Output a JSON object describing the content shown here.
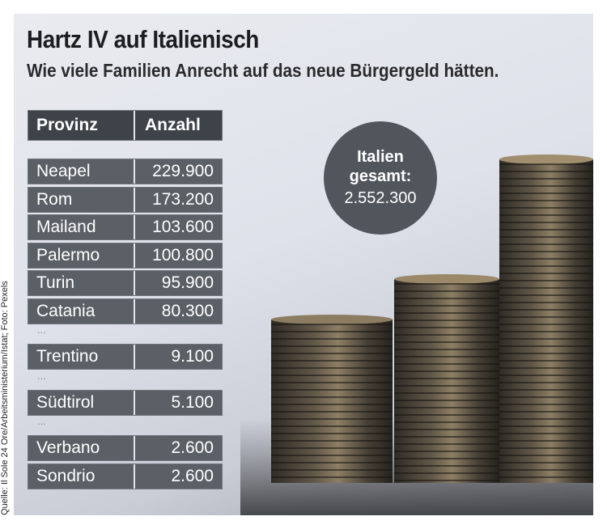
{
  "title": "Hartz IV auf Italienisch",
  "subtitle": "Wie viele Familien Anrecht auf das neue Bürgergeld hätten.",
  "total": {
    "line1": "Italien",
    "line2": "gesamt:",
    "value": "2.552.300"
  },
  "source": "Quelle: Il Sole 24 Ore/Arbeitsministerium/Istat; Foto: Pexels",
  "chart_data": {
    "type": "table",
    "columns": [
      "Provinz",
      "Anzahl"
    ],
    "rows": [
      [
        "Neapel",
        "229.900"
      ],
      [
        "Rom",
        "173.200"
      ],
      [
        "Mailand",
        "103.600"
      ],
      [
        "Palermo",
        "100.800"
      ],
      [
        "Turin",
        "95.900"
      ],
      [
        "Catania",
        "80.300"
      ],
      [
        "...",
        ""
      ],
      [
        "Trentino",
        "9.100"
      ],
      [
        "...",
        ""
      ],
      [
        "Südtirol",
        "5.100"
      ],
      [
        "...",
        ""
      ],
      [
        "Verbano",
        "2.600"
      ],
      [
        "Sondrio",
        "2.600"
      ]
    ],
    "values": [
      229900,
      173200,
      103600,
      100800,
      95900,
      80300,
      9100,
      5100,
      2600,
      2600
    ],
    "total": 2552300
  },
  "colors": {
    "header": "#3d4348",
    "row": "#5a6066",
    "circle": "#50565c"
  }
}
